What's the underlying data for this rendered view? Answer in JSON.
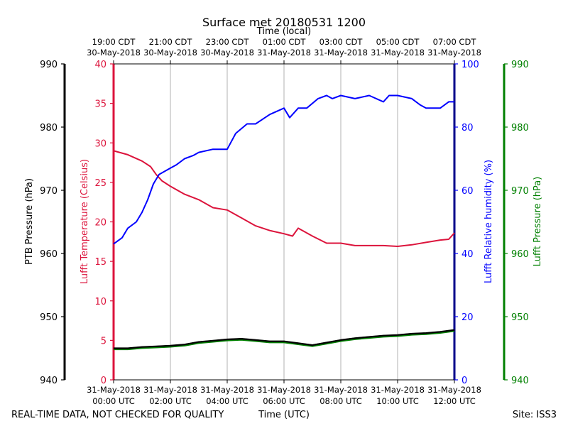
{
  "chart_data": {
    "type": "line",
    "title": "Surface met 20180531 1200",
    "top_axis_label": "Time (local)",
    "x_label": "Time (UTC)",
    "footer_left": "REAL-TIME DATA, NOT CHECKED FOR QUALITY",
    "footer_right": "Site: ISS3",
    "x_range_hours": [
      0,
      12
    ],
    "local_ticks": [
      {
        "line1": "19:00 CDT",
        "line2": "30-May-2018"
      },
      {
        "line1": "21:00 CDT",
        "line2": "30-May-2018"
      },
      {
        "line1": "23:00 CDT",
        "line2": "30-May-2018"
      },
      {
        "line1": "01:00 CDT",
        "line2": "31-May-2018"
      },
      {
        "line1": "03:00 CDT",
        "line2": "31-May-2018"
      },
      {
        "line1": "05:00 CDT",
        "line2": "31-May-2018"
      },
      {
        "line1": "07:00 CDT",
        "line2": "31-May-2018"
      }
    ],
    "utc_ticks": [
      {
        "line1": "31-May-2018",
        "line2": "00:00 UTC"
      },
      {
        "line1": "31-May-2018",
        "line2": "02:00 UTC"
      },
      {
        "line1": "31-May-2018",
        "line2": "04:00 UTC"
      },
      {
        "line1": "31-May-2018",
        "line2": "06:00 UTC"
      },
      {
        "line1": "31-May-2018",
        "line2": "08:00 UTC"
      },
      {
        "line1": "31-May-2018",
        "line2": "10:00 UTC"
      },
      {
        "line1": "31-May-2018",
        "line2": "12:00 UTC"
      }
    ],
    "axes": {
      "ptb_pressure": {
        "label": "PTB Pressure (hPa)",
        "range": [
          940,
          990
        ],
        "ticks": [
          "940",
          "950",
          "960",
          "970",
          "980",
          "990"
        ],
        "color": "#000000"
      },
      "temperature": {
        "label": "Lufft Temperature (Celsius)",
        "range": [
          0,
          40
        ],
        "ticks": [
          "0",
          "5",
          "10",
          "15",
          "20",
          "25",
          "30",
          "35",
          "40"
        ],
        "color": "#dc143c"
      },
      "humidity": {
        "label": "Lufft Relative humidity (%)",
        "range": [
          0,
          100
        ],
        "ticks": [
          "0",
          "20",
          "40",
          "60",
          "80",
          "100"
        ],
        "color": "#0000ff"
      },
      "lufft_pressure": {
        "label": "Lufft Pressure (hPa)",
        "range": [
          940,
          990
        ],
        "ticks": [
          "940",
          "950",
          "960",
          "970",
          "980",
          "990"
        ],
        "color": "#008000"
      }
    },
    "series": [
      {
        "name": "Lufft Temperature",
        "axis": "temperature",
        "color": "#dc143c",
        "x": [
          0,
          0.5,
          1.0,
          1.3,
          1.5,
          1.7,
          2.0,
          2.5,
          3.0,
          3.5,
          4.0,
          4.5,
          5.0,
          5.5,
          6.0,
          6.3,
          6.5,
          7.0,
          7.5,
          8.0,
          8.5,
          9.0,
          9.5,
          10.0,
          10.5,
          11.0,
          11.5,
          11.8,
          12.0
        ],
        "values": [
          29.0,
          28.5,
          27.7,
          27.0,
          26.0,
          25.2,
          24.5,
          23.5,
          22.8,
          21.8,
          21.5,
          20.5,
          19.5,
          18.9,
          18.5,
          18.2,
          19.2,
          18.2,
          17.3,
          17.3,
          17.0,
          17.0,
          17.0,
          16.9,
          17.1,
          17.4,
          17.7,
          17.8,
          18.6
        ]
      },
      {
        "name": "Lufft Relative humidity",
        "axis": "humidity",
        "color": "#0000ff",
        "x": [
          0,
          0.3,
          0.5,
          0.8,
          1.0,
          1.2,
          1.4,
          1.6,
          1.8,
          2.0,
          2.2,
          2.5,
          2.8,
          3.0,
          3.5,
          4.0,
          4.3,
          4.7,
          5.0,
          5.5,
          6.0,
          6.2,
          6.5,
          6.8,
          7.2,
          7.5,
          7.7,
          8.0,
          8.5,
          9.0,
          9.5,
          9.7,
          10.0,
          10.5,
          10.8,
          11.0,
          11.5,
          11.8,
          12.0
        ],
        "values": [
          43,
          45,
          48,
          50,
          53,
          57,
          62,
          65,
          66,
          67,
          68,
          70,
          71,
          72,
          73,
          73,
          78,
          81,
          81,
          84,
          86,
          83,
          86,
          86,
          89,
          90,
          89,
          90,
          89,
          90,
          88,
          90,
          90,
          89,
          87,
          86,
          86,
          88,
          88
        ]
      },
      {
        "name": "Lufft Pressure",
        "axis": "lufft_pressure",
        "color": "#008000",
        "x": [
          0,
          0.5,
          1.0,
          1.5,
          2.0,
          2.5,
          3.0,
          3.5,
          4.0,
          4.5,
          5.0,
          5.5,
          6.0,
          6.5,
          7.0,
          7.5,
          8.0,
          8.5,
          9.0,
          9.5,
          10.0,
          10.5,
          11.0,
          11.5,
          12.0
        ],
        "values": [
          944.9,
          944.9,
          945.1,
          945.2,
          945.3,
          945.5,
          945.9,
          946.1,
          946.3,
          946.4,
          946.2,
          946.0,
          946.0,
          945.7,
          945.4,
          945.8,
          946.2,
          946.5,
          946.7,
          946.9,
          947.0,
          947.2,
          947.3,
          947.5,
          947.8
        ]
      },
      {
        "name": "PTB Pressure",
        "axis": "ptb_pressure",
        "color": "#000000",
        "x": [
          0,
          0.5,
          1.0,
          1.5,
          2.0,
          2.5,
          3.0,
          3.5,
          4.0,
          4.5,
          5.0,
          5.5,
          6.0,
          6.5,
          7.0,
          7.5,
          8.0,
          8.5,
          9.0,
          9.5,
          10.0,
          10.5,
          11.0,
          11.5,
          12.0
        ],
        "values": [
          945.0,
          945.0,
          945.2,
          945.3,
          945.4,
          945.6,
          946.0,
          946.2,
          946.4,
          946.5,
          946.3,
          946.1,
          946.1,
          945.8,
          945.5,
          945.9,
          946.3,
          946.6,
          946.8,
          947.0,
          947.1,
          947.3,
          947.4,
          947.6,
          947.9
        ]
      }
    ]
  }
}
